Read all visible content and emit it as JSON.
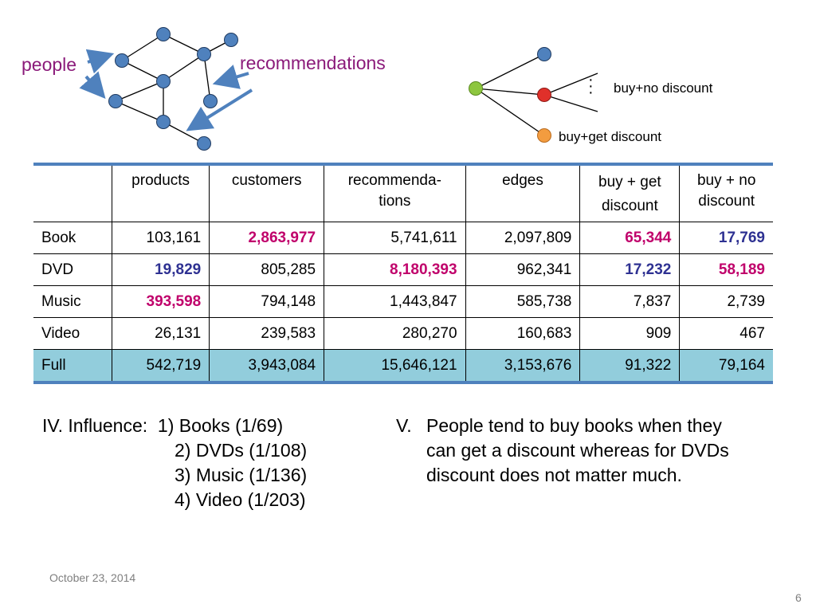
{
  "diagram": {
    "people_label": "people",
    "recommendations_label": "recommendations",
    "buy_no_discount": "buy+no discount",
    "buy_get_discount": "buy+get discount",
    "colors": {
      "node": "#4f81bd",
      "arrow": "#4f81bd",
      "green": "#8dc63f",
      "red": "#e0302a",
      "orange": "#f39c3f"
    }
  },
  "table": {
    "headers": [
      "",
      "products",
      "customers",
      "recommenda-\ntions",
      "edges",
      "buy + get\ndiscount",
      "buy + no\ndiscount"
    ],
    "rows": [
      {
        "label": "Book",
        "cells": [
          "103,161",
          "2,863,977",
          "5,741,611",
          "2,097,809",
          "65,344",
          "17,769"
        ]
      },
      {
        "label": "DVD",
        "cells": [
          "19,829",
          "805,285",
          "8,180,393",
          "962,341",
          "17,232",
          "58,189"
        ]
      },
      {
        "label": "Music",
        "cells": [
          "393,598",
          "794,148",
          "1,443,847",
          "585,738",
          "7,837",
          "2,739"
        ]
      },
      {
        "label": "Video",
        "cells": [
          "26,131",
          "239,583",
          "280,270",
          "160,683",
          "909",
          "467"
        ]
      },
      {
        "label": "Full",
        "cells": [
          "542,719",
          "3,943,084",
          "15,646,121",
          "3,153,676",
          "91,322",
          "79,164"
        ]
      }
    ]
  },
  "influence": {
    "prefix": "IV. Influence:  ",
    "items": [
      "1) Books (1/69)",
      "2) DVDs (1/108)",
      "3) Music (1/136)",
      "4) Video (1/203)"
    ]
  },
  "conclusion": {
    "number": "V.",
    "lines": [
      "People tend to buy books when they",
      "can get a discount whereas for DVDs",
      "discount does not matter much."
    ]
  },
  "footer": {
    "date": "October 23, 2014",
    "page": "6"
  }
}
